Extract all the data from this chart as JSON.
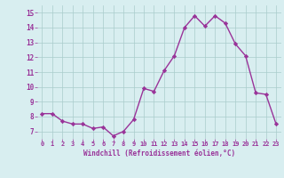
{
  "x": [
    0,
    1,
    2,
    3,
    4,
    5,
    6,
    7,
    8,
    9,
    10,
    11,
    12,
    13,
    14,
    15,
    16,
    17,
    18,
    19,
    20,
    21,
    22,
    23
  ],
  "y": [
    8.2,
    8.2,
    7.7,
    7.5,
    7.5,
    7.2,
    7.3,
    6.7,
    7.0,
    7.8,
    9.9,
    9.7,
    11.1,
    12.1,
    14.0,
    14.8,
    14.1,
    14.8,
    14.3,
    12.9,
    12.1,
    9.6,
    9.5,
    7.5
  ],
  "line_color": "#993399",
  "marker": "D",
  "marker_size": 2.2,
  "line_width": 1.0,
  "bg_color": "#d8eef0",
  "grid_color": "#aacccc",
  "xlabel": "Windchill (Refroidissement éolien,°C)",
  "xlabel_color": "#993399",
  "tick_color": "#993399",
  "ylim": [
    6.5,
    15.5
  ],
  "xlim": [
    -0.5,
    23.5
  ],
  "yticks": [
    7,
    8,
    9,
    10,
    11,
    12,
    13,
    14,
    15
  ],
  "xticks": [
    0,
    1,
    2,
    3,
    4,
    5,
    6,
    7,
    8,
    9,
    10,
    11,
    12,
    13,
    14,
    15,
    16,
    17,
    18,
    19,
    20,
    21,
    22,
    23
  ]
}
